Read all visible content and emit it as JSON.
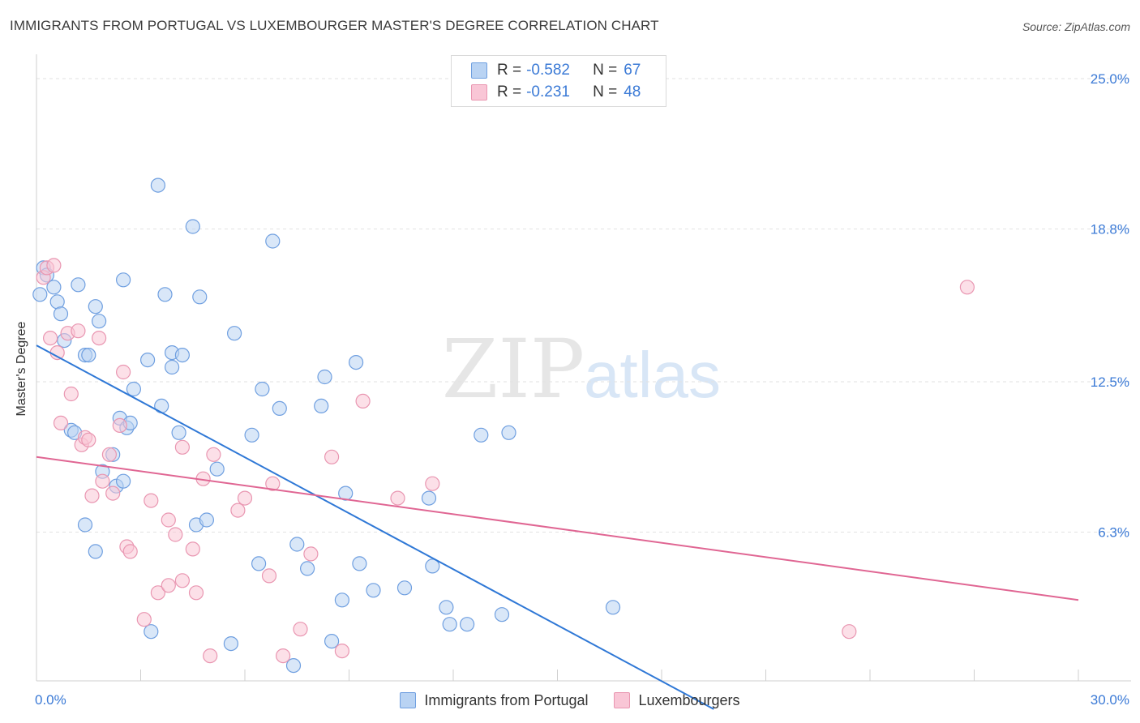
{
  "title": "IMMIGRANTS FROM PORTUGAL VS LUXEMBOURGER MASTER'S DEGREE CORRELATION CHART",
  "source": "Source: ZipAtlas.com",
  "watermark": {
    "zip": "ZIP",
    "atlas": "atlas"
  },
  "legend": {
    "rows": [
      {
        "r_label": "R =",
        "r_value": "-0.582",
        "n_label": "N =",
        "n_value": "67",
        "color_fill": "#b9d3f3",
        "color_stroke": "#6f9fe0"
      },
      {
        "r_label": "R =",
        "r_value": "-0.231",
        "n_label": "N =",
        "n_value": "48",
        "color_fill": "#f9c6d6",
        "color_stroke": "#e996b1"
      }
    ]
  },
  "bottom_legend": [
    "Immigrants from Portugal",
    "Luxembourgers"
  ],
  "chart_data": {
    "type": "scatter",
    "title": "IMMIGRANTS FROM PORTUGAL VS LUXEMBOURGER MASTER'S DEGREE CORRELATION CHART",
    "ylabel": "Master's Degree",
    "xlim": [
      0,
      30
    ],
    "ylim": [
      0,
      25
    ],
    "x_tick_labels": [
      "0.0%",
      "30.0%"
    ],
    "y_ticks": [
      6.3,
      12.5,
      18.8,
      25.0
    ],
    "y_tick_labels": [
      "6.3%",
      "12.5%",
      "18.8%",
      "25.0%"
    ],
    "grid": true,
    "legend_position": "top-center",
    "series": [
      {
        "name": "Immigrants from Portugal",
        "color": "#6f9fe0",
        "fill": "#b9d3f3",
        "line_color": "#2f78d6",
        "trend": {
          "x": [
            0.0,
            19.5
          ],
          "y": [
            14.0,
            -1.0
          ]
        },
        "points": [
          [
            0.1,
            16.1
          ],
          [
            0.2,
            17.2
          ],
          [
            0.3,
            16.9
          ],
          [
            0.5,
            16.4
          ],
          [
            0.6,
            15.8
          ],
          [
            0.7,
            15.3
          ],
          [
            0.8,
            14.2
          ],
          [
            1.0,
            10.5
          ],
          [
            1.1,
            10.4
          ],
          [
            1.2,
            16.5
          ],
          [
            1.4,
            13.6
          ],
          [
            1.4,
            6.6
          ],
          [
            1.5,
            13.6
          ],
          [
            1.7,
            5.5
          ],
          [
            1.7,
            15.6
          ],
          [
            1.8,
            15.0
          ],
          [
            1.9,
            8.8
          ],
          [
            2.2,
            9.5
          ],
          [
            2.3,
            8.2
          ],
          [
            2.4,
            11.0
          ],
          [
            2.5,
            16.7
          ],
          [
            2.5,
            8.4
          ],
          [
            2.6,
            10.6
          ],
          [
            2.7,
            10.8
          ],
          [
            2.8,
            12.2
          ],
          [
            3.2,
            13.4
          ],
          [
            3.3,
            2.2
          ],
          [
            3.5,
            20.6
          ],
          [
            3.6,
            11.5
          ],
          [
            3.7,
            16.1
          ],
          [
            3.9,
            13.7
          ],
          [
            3.9,
            13.1
          ],
          [
            4.1,
            10.4
          ],
          [
            4.2,
            13.6
          ],
          [
            4.5,
            18.9
          ],
          [
            4.6,
            6.6
          ],
          [
            4.7,
            16.0
          ],
          [
            4.9,
            6.8
          ],
          [
            5.2,
            8.9
          ],
          [
            5.6,
            1.7
          ],
          [
            5.7,
            14.5
          ],
          [
            6.2,
            10.3
          ],
          [
            6.4,
            5.0
          ],
          [
            6.5,
            12.2
          ],
          [
            6.8,
            18.3
          ],
          [
            7.0,
            11.4
          ],
          [
            7.4,
            0.8
          ],
          [
            7.5,
            5.8
          ],
          [
            7.8,
            4.8
          ],
          [
            8.2,
            11.5
          ],
          [
            8.3,
            12.7
          ],
          [
            8.5,
            1.8
          ],
          [
            8.8,
            3.5
          ],
          [
            8.9,
            7.9
          ],
          [
            9.2,
            13.3
          ],
          [
            9.3,
            5.0
          ],
          [
            9.7,
            3.9
          ],
          [
            10.6,
            4.0
          ],
          [
            11.3,
            7.7
          ],
          [
            11.4,
            4.9
          ],
          [
            11.8,
            3.2
          ],
          [
            11.9,
            2.5
          ],
          [
            12.4,
            2.5
          ],
          [
            12.8,
            10.3
          ],
          [
            13.4,
            2.9
          ],
          [
            13.6,
            10.4
          ],
          [
            16.6,
            3.2
          ]
        ]
      },
      {
        "name": "Luxembourgers",
        "color": "#e996b1",
        "fill": "#f9c6d6",
        "line_color": "#e06693",
        "trend": {
          "x": [
            0.0,
            30.0
          ],
          "y": [
            9.4,
            3.5
          ]
        },
        "points": [
          [
            0.2,
            16.8
          ],
          [
            0.3,
            17.2
          ],
          [
            0.4,
            14.3
          ],
          [
            0.5,
            17.3
          ],
          [
            0.6,
            13.7
          ],
          [
            0.7,
            10.8
          ],
          [
            0.9,
            14.5
          ],
          [
            1.0,
            12.0
          ],
          [
            1.2,
            14.6
          ],
          [
            1.3,
            9.9
          ],
          [
            1.4,
            10.2
          ],
          [
            1.5,
            10.1
          ],
          [
            1.6,
            7.8
          ],
          [
            1.8,
            14.3
          ],
          [
            1.9,
            8.4
          ],
          [
            2.1,
            9.5
          ],
          [
            2.2,
            7.9
          ],
          [
            2.4,
            10.7
          ],
          [
            2.5,
            12.9
          ],
          [
            2.6,
            5.7
          ],
          [
            2.7,
            5.5
          ],
          [
            3.1,
            2.7
          ],
          [
            3.3,
            7.6
          ],
          [
            3.5,
            3.8
          ],
          [
            3.8,
            6.8
          ],
          [
            3.8,
            4.1
          ],
          [
            4.0,
            6.2
          ],
          [
            4.2,
            9.8
          ],
          [
            4.2,
            4.3
          ],
          [
            4.5,
            5.6
          ],
          [
            4.6,
            3.8
          ],
          [
            4.8,
            8.5
          ],
          [
            5.0,
            1.2
          ],
          [
            5.1,
            9.5
          ],
          [
            5.8,
            7.2
          ],
          [
            6.0,
            7.7
          ],
          [
            6.7,
            4.5
          ],
          [
            6.8,
            8.3
          ],
          [
            7.1,
            1.2
          ],
          [
            7.6,
            2.3
          ],
          [
            7.9,
            5.4
          ],
          [
            8.5,
            9.4
          ],
          [
            8.8,
            1.4
          ],
          [
            9.4,
            11.7
          ],
          [
            10.4,
            7.7
          ],
          [
            11.4,
            8.3
          ],
          [
            23.4,
            2.2
          ],
          [
            26.8,
            16.4
          ]
        ]
      }
    ]
  }
}
